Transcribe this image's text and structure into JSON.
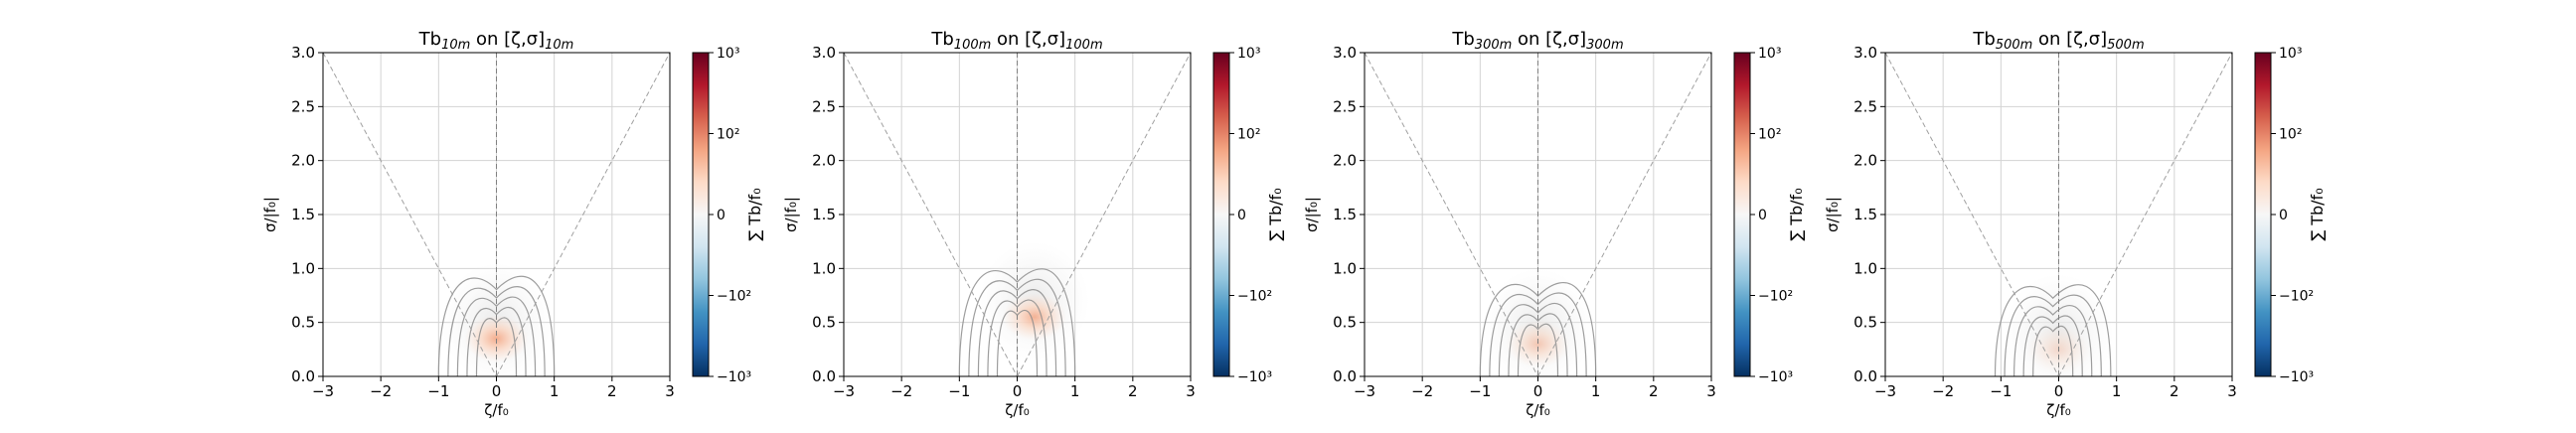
{
  "figure": {
    "panels": [
      {
        "title_main": "Tb",
        "title_sub": "10m",
        "title_mid": " on [ζ,σ]",
        "title_sub2": "10m"
      },
      {
        "title_main": "Tb",
        "title_sub": "100m",
        "title_mid": " on [ζ,σ]",
        "title_sub2": "100m"
      },
      {
        "title_main": "Tb",
        "title_sub": "300m",
        "title_mid": " on [ζ,σ]",
        "title_sub2": "300m"
      },
      {
        "title_main": "Tb",
        "title_sub": "500m",
        "title_mid": " on [ζ,σ]",
        "title_sub2": "500m"
      }
    ],
    "xlabel": "ζ/f₀",
    "ylabel": "σ/|f₀|",
    "colorbar_label": "∑ Tb/f₀"
  },
  "chart_data": [
    {
      "type": "heatmap",
      "title": "Tb10m on [ζ,σ]10m",
      "xlabel": "ζ/f0",
      "ylabel": "σ/|f0|",
      "xlim": [
        -3,
        3
      ],
      "ylim": [
        0,
        3
      ],
      "xticks": [
        "−3",
        "−2",
        "−1",
        "0",
        "1",
        "2",
        "3"
      ],
      "yticks": [
        "0.0",
        "0.5",
        "1.0",
        "1.5",
        "2.0",
        "2.5",
        "3.0"
      ],
      "grid": true,
      "reference_lines": [
        {
          "shape": "V",
          "slope": 1,
          "style": "dashed"
        },
        {
          "shape": "vertical",
          "x": 0,
          "style": "dashed"
        }
      ],
      "heat_region": {
        "x_center": 0.0,
        "y_center": 0.35,
        "peak": 30,
        "color_scale": "RdBu_r symlog"
      },
      "contours": {
        "base_x": 0.0,
        "base_y": 0.28,
        "levels": 5
      },
      "colorbar": {
        "label": "∑ Tb/f0",
        "ticks": [
          "10³",
          "10²",
          "0",
          "−10²",
          "−10³"
        ],
        "range": [
          -1000,
          1000
        ],
        "scale": "symlog"
      }
    },
    {
      "type": "heatmap",
      "title": "Tb100m on [ζ,σ]100m",
      "xlabel": "ζ/f0",
      "ylabel": "σ/|f0|",
      "xlim": [
        -3,
        3
      ],
      "ylim": [
        0,
        3
      ],
      "xticks": [
        "−3",
        "−2",
        "−1",
        "0",
        "1",
        "2",
        "3"
      ],
      "yticks": [
        "0.0",
        "0.5",
        "1.0",
        "1.5",
        "2.0",
        "2.5",
        "3.0"
      ],
      "grid": true,
      "reference_lines": [
        {
          "shape": "V",
          "slope": 1,
          "style": "dashed"
        },
        {
          "shape": "vertical",
          "x": 0,
          "style": "dashed"
        }
      ],
      "heat_region": {
        "x_center": 0.3,
        "y_center": 0.55,
        "peak": 25,
        "color_scale": "RdBu_r symlog"
      },
      "contours": {
        "base_x": 0.0,
        "base_y": 0.35,
        "levels": 5
      },
      "colorbar": {
        "label": "∑ Tb/f0",
        "ticks": [
          "10³",
          "10²",
          "0",
          "−10²",
          "−10³"
        ],
        "range": [
          -1000,
          1000
        ],
        "scale": "symlog"
      }
    },
    {
      "type": "heatmap",
      "title": "Tb300m on [ζ,σ]300m",
      "xlabel": "ζ/f0",
      "ylabel": "σ/|f0|",
      "xlim": [
        -3,
        3
      ],
      "ylim": [
        0,
        3
      ],
      "xticks": [
        "−3",
        "−2",
        "−1",
        "0",
        "1",
        "2",
        "3"
      ],
      "yticks": [
        "0.0",
        "0.5",
        "1.0",
        "1.5",
        "2.0",
        "2.5",
        "3.0"
      ],
      "grid": true,
      "reference_lines": [
        {
          "shape": "V",
          "slope": 1,
          "style": "dashed"
        },
        {
          "shape": "vertical",
          "x": 0,
          "style": "dashed"
        }
      ],
      "heat_region": {
        "x_center": 0.0,
        "y_center": 0.3,
        "peak": 8,
        "color_scale": "RdBu_r symlog"
      },
      "contours": {
        "base_x": 0.0,
        "base_y": 0.22,
        "levels": 5
      },
      "colorbar": {
        "label": "∑ Tb/f0",
        "ticks": [
          "10³",
          "10²",
          "0",
          "−10²",
          "−10³"
        ],
        "range": [
          -1000,
          1000
        ],
        "scale": "symlog"
      }
    },
    {
      "type": "heatmap",
      "title": "Tb500m on [ζ,σ]500m",
      "xlabel": "ζ/f0",
      "ylabel": "σ/|f0|",
      "xlim": [
        -3,
        3
      ],
      "ylim": [
        0,
        3
      ],
      "xticks": [
        "−3",
        "−2",
        "−1",
        "0",
        "1",
        "2",
        "3"
      ],
      "yticks": [
        "0.0",
        "0.5",
        "1.0",
        "1.5",
        "2.0",
        "2.5",
        "3.0"
      ],
      "grid": true,
      "reference_lines": [
        {
          "shape": "V",
          "slope": 1,
          "style": "dashed"
        },
        {
          "shape": "vertical",
          "x": 0,
          "style": "dashed"
        }
      ],
      "heat_region": {
        "x_center": 0.0,
        "y_center": 0.25,
        "peak": 3,
        "color_scale": "RdBu_r symlog"
      },
      "contours": {
        "base_x": -0.1,
        "base_y": 0.2,
        "levels": 5
      },
      "colorbar": {
        "label": "∑ Tb/f0",
        "ticks": [
          "10³",
          "10²",
          "0",
          "−10²",
          "−10³"
        ],
        "range": [
          -1000,
          1000
        ],
        "scale": "symlog"
      }
    }
  ]
}
